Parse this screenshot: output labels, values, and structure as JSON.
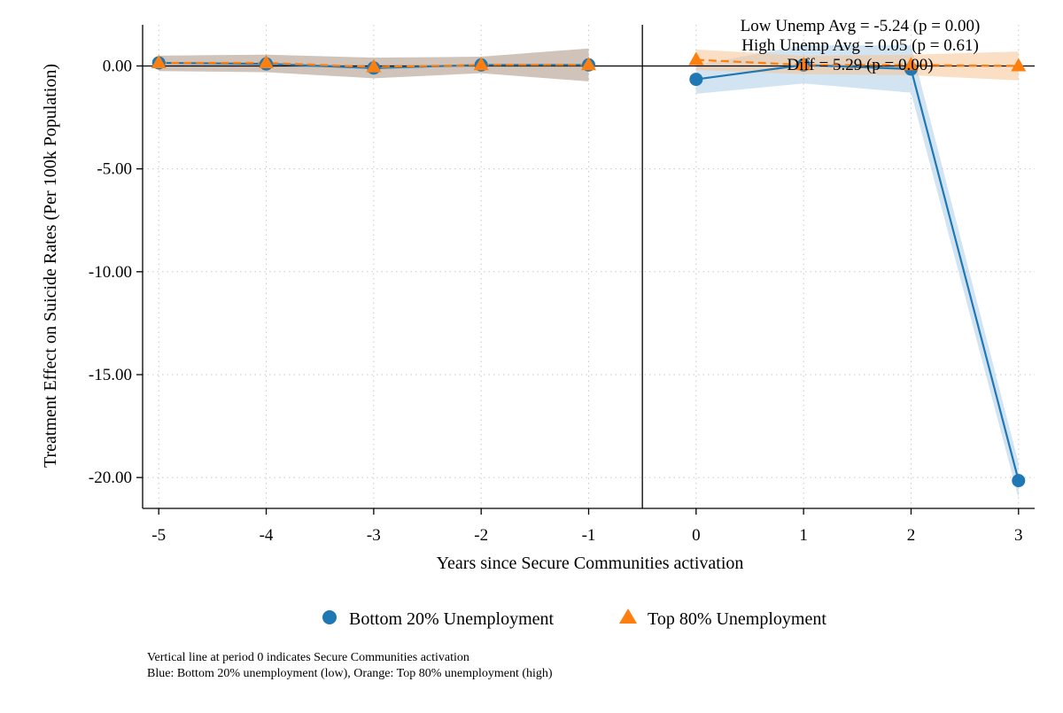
{
  "chart_data": {
    "type": "line",
    "xlabel": "Years since Secure Communities activation",
    "ylabel": "Treatment Effect on Suicide Rates (Per 100k Population)",
    "x": [
      -5,
      -4,
      -3,
      -2,
      -1,
      0,
      1,
      2,
      3
    ],
    "x_ticks": [
      "-5",
      "-4",
      "-3",
      "-2",
      "-1",
      "0",
      "1",
      "2",
      "3"
    ],
    "xlim": [
      -5.15,
      3.15
    ],
    "y_ticks": [
      "0.00",
      "-5.00",
      "-10.00",
      "-15.00",
      "-20.00"
    ],
    "ylim": [
      -21.5,
      2.0
    ],
    "grid": true,
    "vertical_line_at": -0.5,
    "horizontal_line_at": 0,
    "series": [
      {
        "name": "Bottom 20% Unemployment",
        "color": "#1f77b4",
        "marker": "circle",
        "line_style": "solid",
        "values": [
          0.15,
          0.1,
          -0.1,
          0.05,
          0.05,
          -0.65,
          0.05,
          -0.15,
          -20.15
        ],
        "ci_lower": [
          -0.25,
          -0.3,
          -0.6,
          -0.35,
          -0.75,
          -1.35,
          -0.85,
          -1.3,
          -21.0
        ],
        "ci_upper": [
          0.5,
          0.55,
          0.4,
          0.45,
          0.85,
          0.05,
          1.0,
          1.0,
          -19.3
        ]
      },
      {
        "name": "Top 80% Unemployment",
        "color": "#ff7f0e",
        "marker": "triangle",
        "line_style": "dashed",
        "values": [
          0.15,
          0.15,
          -0.05,
          0.05,
          0.05,
          0.3,
          0.05,
          0.05,
          0.0
        ],
        "ci_lower": [
          -0.25,
          -0.3,
          -0.6,
          -0.35,
          -0.75,
          -0.2,
          -0.4,
          -0.45,
          -0.7
        ],
        "ci_upper": [
          0.5,
          0.55,
          0.4,
          0.45,
          0.85,
          0.8,
          0.5,
          0.55,
          0.7
        ]
      }
    ],
    "annotations": [
      "Low Unemp Avg = -5.24 (p = 0.00)",
      "High Unemp Avg = 0.05 (p = 0.61)",
      "Diff = 5.29 (p = 0.00)"
    ],
    "legend_position": "bottom",
    "notes": [
      "Vertical line at period 0 indicates Secure Communities activation",
      "Blue: Bottom 20% unemployment (low), Orange: Top 80% unemployment (high)"
    ]
  }
}
